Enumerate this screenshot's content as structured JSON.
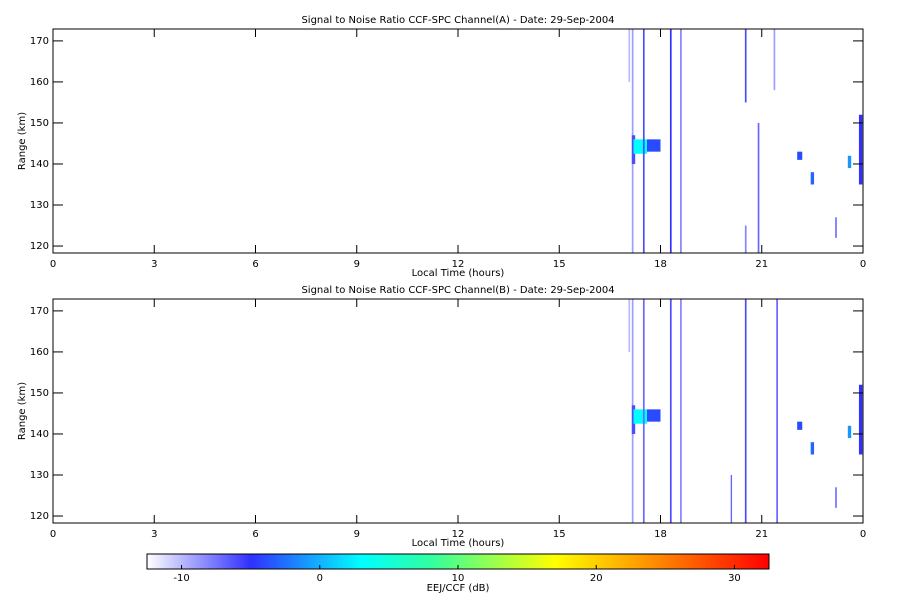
{
  "chart_data": [
    {
      "type": "heatmap",
      "title": "Signal to Noise Ratio CCF-SPC Channel(A) - Date: 29-Sep-2004",
      "x_label": "Local Time (hours)",
      "y_label": "Range (km)",
      "xlim": [
        0,
        24
      ],
      "xticks": [
        0,
        3,
        6,
        9,
        12,
        15,
        18,
        21,
        {
          "value": 24,
          "label": "0"
        }
      ],
      "ylim": [
        118.3,
        172.9
      ],
      "yticks": [
        120,
        130,
        140,
        150,
        160,
        170
      ],
      "cells": [
        {
          "x0": 17.05,
          "x1": 17.1,
          "y0": 160,
          "y1": 172.9,
          "value": -10
        },
        {
          "x0": 17.15,
          "x1": 17.2,
          "y0": 118.3,
          "y1": 172.9,
          "value": -9
        },
        {
          "x0": 17.15,
          "x1": 17.25,
          "y0": 140,
          "y1": 147,
          "value": -6
        },
        {
          "x0": 17.6,
          "x1": 18.0,
          "y0": 143,
          "y1": 146,
          "value": -4
        },
        {
          "x0": 17.2,
          "x1": 17.6,
          "y0": 142.5,
          "y1": 146,
          "value": 3
        },
        {
          "x0": 17.48,
          "x1": 17.53,
          "y0": 118.3,
          "y1": 172.9,
          "value": -6
        },
        {
          "x0": 18.28,
          "x1": 18.33,
          "y0": 118.3,
          "y1": 172.9,
          "value": -5
        },
        {
          "x0": 18.58,
          "x1": 18.63,
          "y0": 118.3,
          "y1": 172.9,
          "value": -8
        },
        {
          "x0": 20.5,
          "x1": 20.55,
          "y0": 155,
          "y1": 172.9,
          "value": -6
        },
        {
          "x0": 20.5,
          "x1": 20.55,
          "y0": 118.3,
          "y1": 125,
          "value": -8
        },
        {
          "x0": 20.88,
          "x1": 20.93,
          "y0": 118.3,
          "y1": 150,
          "value": -7
        },
        {
          "x0": 21.35,
          "x1": 21.4,
          "y0": 158,
          "y1": 172.9,
          "value": -9
        },
        {
          "x0": 22.05,
          "x1": 22.2,
          "y0": 141,
          "y1": 143,
          "value": -4
        },
        {
          "x0": 22.45,
          "x1": 22.55,
          "y0": 135,
          "y1": 138,
          "value": -3
        },
        {
          "x0": 23.18,
          "x1": 23.22,
          "y0": 122,
          "y1": 127,
          "value": -6
        },
        {
          "x0": 23.55,
          "x1": 23.65,
          "y0": 139,
          "y1": 142,
          "value": -1
        },
        {
          "x0": 23.88,
          "x1": 23.98,
          "y0": 135,
          "y1": 152,
          "value": -5
        }
      ]
    },
    {
      "type": "heatmap",
      "title": "Signal to Noise Ratio CCF-SPC Channel(B) - Date: 29-Sep-2004",
      "x_label": "Local Time (hours)",
      "y_label": "Range (km)",
      "xlim": [
        0,
        24
      ],
      "xticks": [
        0,
        3,
        6,
        9,
        12,
        15,
        18,
        21,
        {
          "value": 24,
          "label": "0"
        }
      ],
      "ylim": [
        118.3,
        172.9
      ],
      "yticks": [
        120,
        130,
        140,
        150,
        160,
        170
      ],
      "cells": [
        {
          "x0": 17.05,
          "x1": 17.1,
          "y0": 160,
          "y1": 172.9,
          "value": -10
        },
        {
          "x0": 17.15,
          "x1": 17.2,
          "y0": 118.3,
          "y1": 172.9,
          "value": -9
        },
        {
          "x0": 17.15,
          "x1": 17.25,
          "y0": 140,
          "y1": 147,
          "value": -6
        },
        {
          "x0": 17.6,
          "x1": 18.0,
          "y0": 143,
          "y1": 146,
          "value": -4
        },
        {
          "x0": 17.2,
          "x1": 17.6,
          "y0": 142.5,
          "y1": 146,
          "value": 3
        },
        {
          "x0": 17.48,
          "x1": 17.53,
          "y0": 118.3,
          "y1": 172.9,
          "value": -7
        },
        {
          "x0": 18.28,
          "x1": 18.33,
          "y0": 118.3,
          "y1": 172.9,
          "value": -6
        },
        {
          "x0": 18.58,
          "x1": 18.63,
          "y0": 118.3,
          "y1": 172.9,
          "value": -8
        },
        {
          "x0": 20.5,
          "x1": 20.55,
          "y0": 118.3,
          "y1": 172.9,
          "value": -6
        },
        {
          "x0": 20.08,
          "x1": 20.12,
          "y0": 118.3,
          "y1": 130,
          "value": -7
        },
        {
          "x0": 21.43,
          "x1": 21.48,
          "y0": 118.3,
          "y1": 172.9,
          "value": -7
        },
        {
          "x0": 22.05,
          "x1": 22.2,
          "y0": 141,
          "y1": 143,
          "value": -4
        },
        {
          "x0": 22.45,
          "x1": 22.55,
          "y0": 135,
          "y1": 138,
          "value": -3
        },
        {
          "x0": 23.18,
          "x1": 23.22,
          "y0": 122,
          "y1": 127,
          "value": -6
        },
        {
          "x0": 23.55,
          "x1": 23.65,
          "y0": 139,
          "y1": 142,
          "value": -1
        },
        {
          "x0": 23.88,
          "x1": 23.98,
          "y0": 135,
          "y1": 152,
          "value": -5
        }
      ]
    },
    {
      "type": "colorbar",
      "label": "EEJ/CCF (dB)",
      "xlim": [
        -12.5,
        32.5
      ],
      "xticks": [
        -10,
        0,
        10,
        20,
        30
      ],
      "colormap": [
        {
          "value": -12.5,
          "color": "#ffffff"
        },
        {
          "value": -5,
          "color": "#3030ff"
        },
        {
          "value": 3,
          "color": "#00ffff"
        },
        {
          "value": 8,
          "color": "#30ffa0"
        },
        {
          "value": 17,
          "color": "#ffff00"
        },
        {
          "value": 24,
          "color": "#ff9000"
        },
        {
          "value": 32.5,
          "color": "#ff0000"
        }
      ]
    }
  ]
}
